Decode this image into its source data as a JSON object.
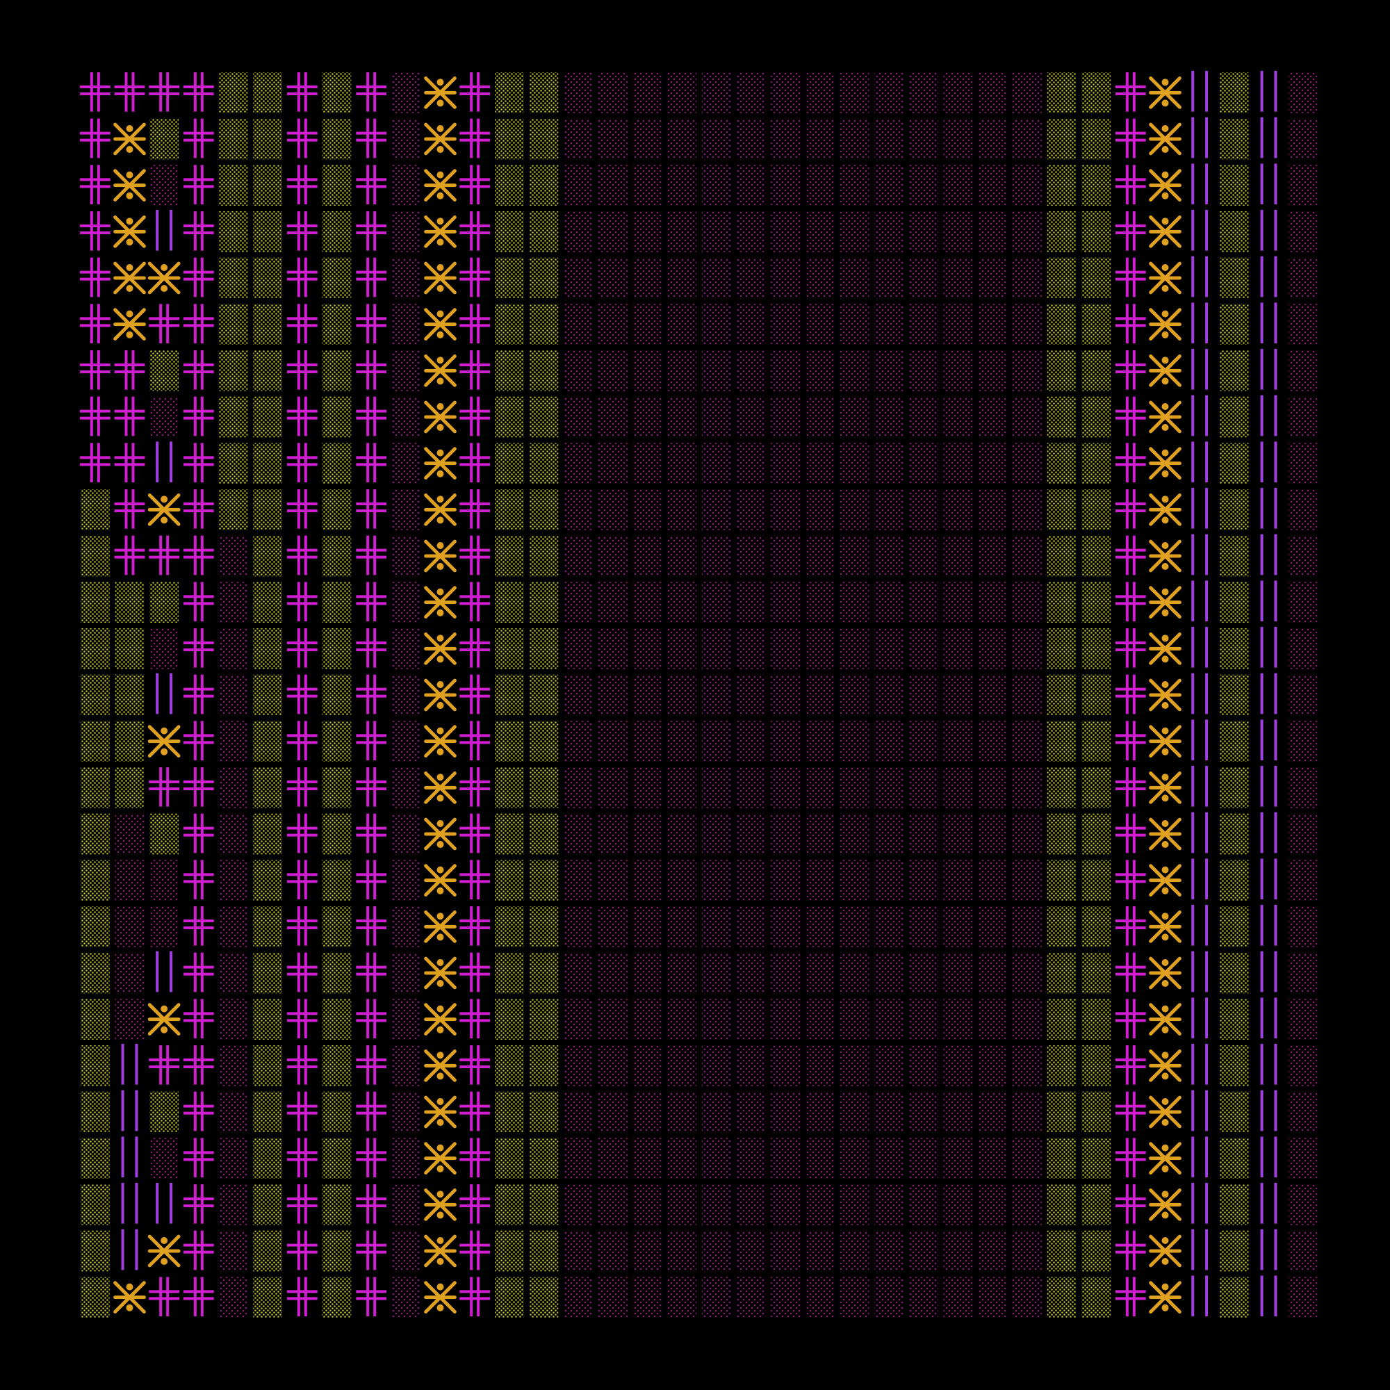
{
  "artwork": {
    "background": "#000000",
    "palette": {
      "cross_magenta": "#d21ed2",
      "asterisk_gold": "#e0a020",
      "bar_violet": "#a040e0",
      "dots_olive": "#b4b42e",
      "dots_magenta": "#a0148c"
    },
    "tile_types": [
      "double-cross",
      "asterisk-circle",
      "double-bar",
      "dot-field-olive",
      "dot-field-magenta"
    ],
    "grid": {
      "columns": 36,
      "rows": 27
    },
    "column_pattern": [
      "cross",
      "mixed-a",
      "mixed-b",
      "cross",
      "olive-then-magenta",
      "olive",
      "cross",
      "olive",
      "cross",
      "magenta",
      "asterisk",
      "cross",
      "olive",
      "olive",
      "magenta",
      "magenta",
      "magenta",
      "magenta",
      "magenta",
      "magenta",
      "magenta",
      "magenta",
      "magenta",
      "magenta",
      "magenta",
      "magenta",
      "magenta",
      "magenta",
      "olive",
      "olive",
      "cross",
      "asterisk",
      "bars",
      "olive",
      "bars",
      "magenta"
    ]
  }
}
